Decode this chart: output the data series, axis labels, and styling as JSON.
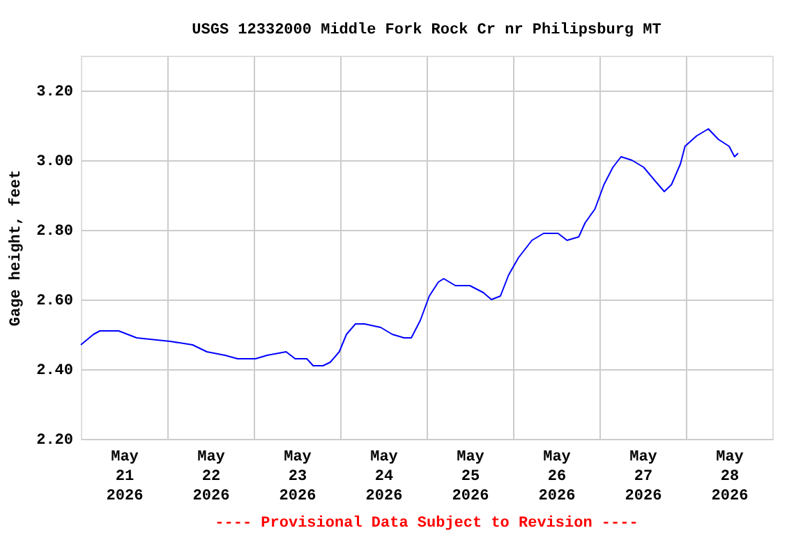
{
  "chart_data": {
    "type": "line",
    "title": "USGS 12332000 Middle Fork Rock Cr nr Philipsburg MT",
    "ylabel": "Gage height, feet",
    "annotations": [
      "---- Provisional Data Subject to Revision ----"
    ],
    "xlim": [
      "2026-05-21T00:00",
      "2026-05-29T00:00"
    ],
    "xticks": [
      {
        "value": "2026-05-21T12:00",
        "label": "May 21 2026"
      },
      {
        "value": "2026-05-22T12:00",
        "label": "May 22 2026"
      },
      {
        "value": "2026-05-23T12:00",
        "label": "May 23 2026"
      },
      {
        "value": "2026-05-24T12:00",
        "label": "May 24 2026"
      },
      {
        "value": "2026-05-25T12:00",
        "label": "May 25 2026"
      },
      {
        "value": "2026-05-26T12:00",
        "label": "May 26 2026"
      },
      {
        "value": "2026-05-27T12:00",
        "label": "May 27 2026"
      },
      {
        "value": "2026-05-28T12:00",
        "label": "May 28 2026"
      },
      {
        "value": "2026-05-22T00:00",
        "label": null
      },
      {
        "value": "2026-05-23T00:00",
        "label": null
      },
      {
        "value": "2026-05-24T00:00",
        "label": null
      },
      {
        "value": "2026-05-25T00:00",
        "label": null
      },
      {
        "value": "2026-05-26T00:00",
        "label": null
      },
      {
        "value": "2026-05-27T00:00",
        "label": null
      },
      {
        "value": "2026-05-28T00:00",
        "label": null
      }
    ],
    "ylim": [
      2.2,
      3.3
    ],
    "yticks": [
      {
        "value": 2.2,
        "label": "2.20"
      },
      {
        "value": 2.4,
        "label": "2.40"
      },
      {
        "value": 2.6,
        "label": "2.60"
      },
      {
        "value": 2.8,
        "label": "2.80"
      },
      {
        "value": 3.0,
        "label": "3.00"
      },
      {
        "value": 3.2,
        "label": "3.20"
      }
    ],
    "grid": true,
    "x": [
      "2026-05-21T00:00",
      "2026-05-21T03:30",
      "2026-05-21T05:15",
      "2026-05-21T10:30",
      "2026-05-21T15:30",
      "2026-05-22T00:45",
      "2026-05-22T07:00",
      "2026-05-22T11:00",
      "2026-05-22T16:00",
      "2026-05-22T19:30",
      "2026-05-23T00:30",
      "2026-05-23T03:45",
      "2026-05-23T09:00",
      "2026-05-23T11:30",
      "2026-05-23T14:45",
      "2026-05-23T16:30",
      "2026-05-23T19:15",
      "2026-05-23T21:15",
      "2026-05-23T23:45",
      "2026-05-24T01:45",
      "2026-05-24T04:15",
      "2026-05-24T06:45",
      "2026-05-24T11:15",
      "2026-05-24T14:30",
      "2026-05-24T17:45",
      "2026-05-24T19:45",
      "2026-05-24T22:15",
      "2026-05-25T00:45",
      "2026-05-25T03:15",
      "2026-05-25T04:45",
      "2026-05-25T08:00",
      "2026-05-25T12:00",
      "2026-05-25T15:45",
      "2026-05-25T18:00",
      "2026-05-25T20:30",
      "2026-05-25T22:45",
      "2026-05-26T01:30",
      "2026-05-26T05:15",
      "2026-05-26T08:30",
      "2026-05-26T12:30",
      "2026-05-26T15:00",
      "2026-05-26T18:15",
      "2026-05-26T20:00",
      "2026-05-26T22:45",
      "2026-05-27T01:15",
      "2026-05-27T03:45",
      "2026-05-27T06:00",
      "2026-05-27T09:00",
      "2026-05-27T12:15",
      "2026-05-27T15:30",
      "2026-05-27T18:00",
      "2026-05-27T20:00",
      "2026-05-27T22:30",
      "2026-05-27T23:45",
      "2026-05-28T03:00",
      "2026-05-28T06:15",
      "2026-05-28T09:00",
      "2026-05-28T12:00",
      "2026-05-28T13:30",
      "2026-05-28T14:30"
    ],
    "series": [
      {
        "color": "#0000ff",
        "values": [
          2.47,
          2.5,
          2.51,
          2.51,
          2.49,
          2.48,
          2.47,
          2.45,
          2.44,
          2.43,
          2.43,
          2.44,
          2.45,
          2.43,
          2.43,
          2.41,
          2.41,
          2.42,
          2.45,
          2.5,
          2.53,
          2.53,
          2.52,
          2.5,
          2.49,
          2.49,
          2.54,
          2.61,
          2.65,
          2.66,
          2.64,
          2.64,
          2.62,
          2.6,
          2.61,
          2.67,
          2.72,
          2.77,
          2.79,
          2.79,
          2.77,
          2.78,
          2.82,
          2.86,
          2.93,
          2.98,
          3.01,
          3.0,
          2.98,
          2.94,
          2.91,
          2.93,
          2.99,
          3.04,
          3.07,
          3.09,
          3.06,
          3.04,
          3.01,
          3.02
        ]
      }
    ]
  }
}
